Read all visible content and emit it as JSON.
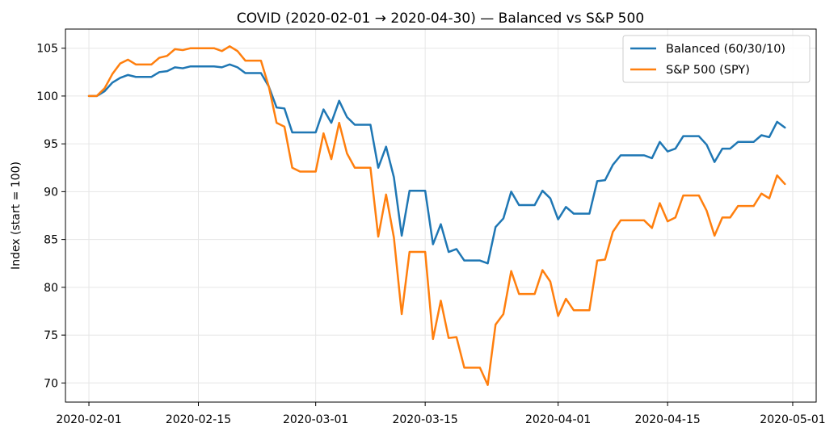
{
  "chart_data": {
    "type": "line",
    "title": "COVID (2020-02-01 → 2020-04-30) — Balanced vs S&P 500",
    "xlabel": "",
    "ylabel": "Index (start = 100)",
    "xlim": [
      "2020-01-29",
      "2020-05-04"
    ],
    "ylim": [
      68,
      107
    ],
    "x_ticks": [
      "2020-02-01",
      "2020-02-15",
      "2020-03-01",
      "2020-03-15",
      "2020-04-01",
      "2020-04-15",
      "2020-05-01"
    ],
    "y_ticks": [
      70,
      75,
      80,
      85,
      90,
      95,
      100,
      105
    ],
    "grid": true,
    "legend_position": "top-right",
    "x": [
      "2020-02-01",
      "2020-02-02",
      "2020-02-03",
      "2020-02-04",
      "2020-02-05",
      "2020-02-06",
      "2020-02-07",
      "2020-02-08",
      "2020-02-09",
      "2020-02-10",
      "2020-02-11",
      "2020-02-12",
      "2020-02-13",
      "2020-02-14",
      "2020-02-15",
      "2020-02-16",
      "2020-02-17",
      "2020-02-18",
      "2020-02-19",
      "2020-02-20",
      "2020-02-21",
      "2020-02-22",
      "2020-02-23",
      "2020-02-24",
      "2020-02-25",
      "2020-02-26",
      "2020-02-27",
      "2020-02-28",
      "2020-02-29",
      "2020-03-01",
      "2020-03-02",
      "2020-03-03",
      "2020-03-04",
      "2020-03-05",
      "2020-03-06",
      "2020-03-07",
      "2020-03-08",
      "2020-03-09",
      "2020-03-10",
      "2020-03-11",
      "2020-03-12",
      "2020-03-13",
      "2020-03-14",
      "2020-03-15",
      "2020-03-16",
      "2020-03-17",
      "2020-03-18",
      "2020-03-19",
      "2020-03-20",
      "2020-03-21",
      "2020-03-22",
      "2020-03-23",
      "2020-03-24",
      "2020-03-25",
      "2020-03-26",
      "2020-03-27",
      "2020-03-28",
      "2020-03-29",
      "2020-03-30",
      "2020-03-31",
      "2020-04-01",
      "2020-04-02",
      "2020-04-03",
      "2020-04-04",
      "2020-04-05",
      "2020-04-06",
      "2020-04-07",
      "2020-04-08",
      "2020-04-09",
      "2020-04-10",
      "2020-04-11",
      "2020-04-12",
      "2020-04-13",
      "2020-04-14",
      "2020-04-15",
      "2020-04-16",
      "2020-04-17",
      "2020-04-18",
      "2020-04-19",
      "2020-04-20",
      "2020-04-21",
      "2020-04-22",
      "2020-04-23",
      "2020-04-24",
      "2020-04-25",
      "2020-04-26",
      "2020-04-27",
      "2020-04-28",
      "2020-04-29",
      "2020-04-30"
    ],
    "series": [
      {
        "name": "Balanced (60/30/10)",
        "color": "#1f77b4",
        "values": [
          100.0,
          100.0,
          100.5,
          101.4,
          101.9,
          102.2,
          102.0,
          102.0,
          102.0,
          102.5,
          102.6,
          103.0,
          102.9,
          103.1,
          103.1,
          103.1,
          103.1,
          103.0,
          103.3,
          103.0,
          102.4,
          102.4,
          102.4,
          101.0,
          98.8,
          98.7,
          96.2,
          96.2,
          96.2,
          96.2,
          98.6,
          97.2,
          99.5,
          97.8,
          97.0,
          97.0,
          97.0,
          92.5,
          94.7,
          91.5,
          85.4,
          90.1,
          90.1,
          90.1,
          84.5,
          86.6,
          83.7,
          84.0,
          82.8,
          82.8,
          82.8,
          82.5,
          86.3,
          87.2,
          90.0,
          88.6,
          88.6,
          88.6,
          90.1,
          89.3,
          87.1,
          88.4,
          87.7,
          87.7,
          87.7,
          91.1,
          91.2,
          92.8,
          93.8,
          93.8,
          93.8,
          93.8,
          93.5,
          95.2,
          94.2,
          94.5,
          95.8,
          95.8,
          95.8,
          94.9,
          93.1,
          94.5,
          94.5,
          95.2,
          95.2,
          95.2,
          95.9,
          95.7,
          97.3,
          96.7
        ]
      },
      {
        "name": "S&P 500 (SPY)",
        "color": "#ff7f0e",
        "values": [
          100.0,
          100.0,
          100.8,
          102.3,
          103.4,
          103.8,
          103.3,
          103.3,
          103.3,
          104.0,
          104.2,
          104.9,
          104.8,
          105.0,
          105.0,
          105.0,
          105.0,
          104.7,
          105.2,
          104.7,
          103.7,
          103.7,
          103.7,
          101.0,
          97.2,
          96.8,
          92.5,
          92.1,
          92.1,
          92.1,
          96.1,
          93.4,
          97.2,
          94.0,
          92.5,
          92.5,
          92.5,
          85.3,
          89.7,
          85.2,
          77.2,
          83.7,
          83.7,
          83.7,
          74.6,
          78.6,
          74.7,
          74.8,
          71.6,
          71.6,
          71.6,
          69.8,
          76.1,
          77.2,
          81.7,
          79.3,
          79.3,
          79.3,
          81.8,
          80.6,
          77.0,
          78.8,
          77.6,
          77.6,
          77.6,
          82.8,
          82.9,
          85.8,
          87.0,
          87.0,
          87.0,
          87.0,
          86.2,
          88.8,
          86.9,
          87.3,
          89.6,
          89.6,
          89.6,
          88.0,
          85.4,
          87.3,
          87.3,
          88.5,
          88.5,
          88.5,
          89.8,
          89.3,
          91.7,
          90.8
        ]
      }
    ]
  }
}
